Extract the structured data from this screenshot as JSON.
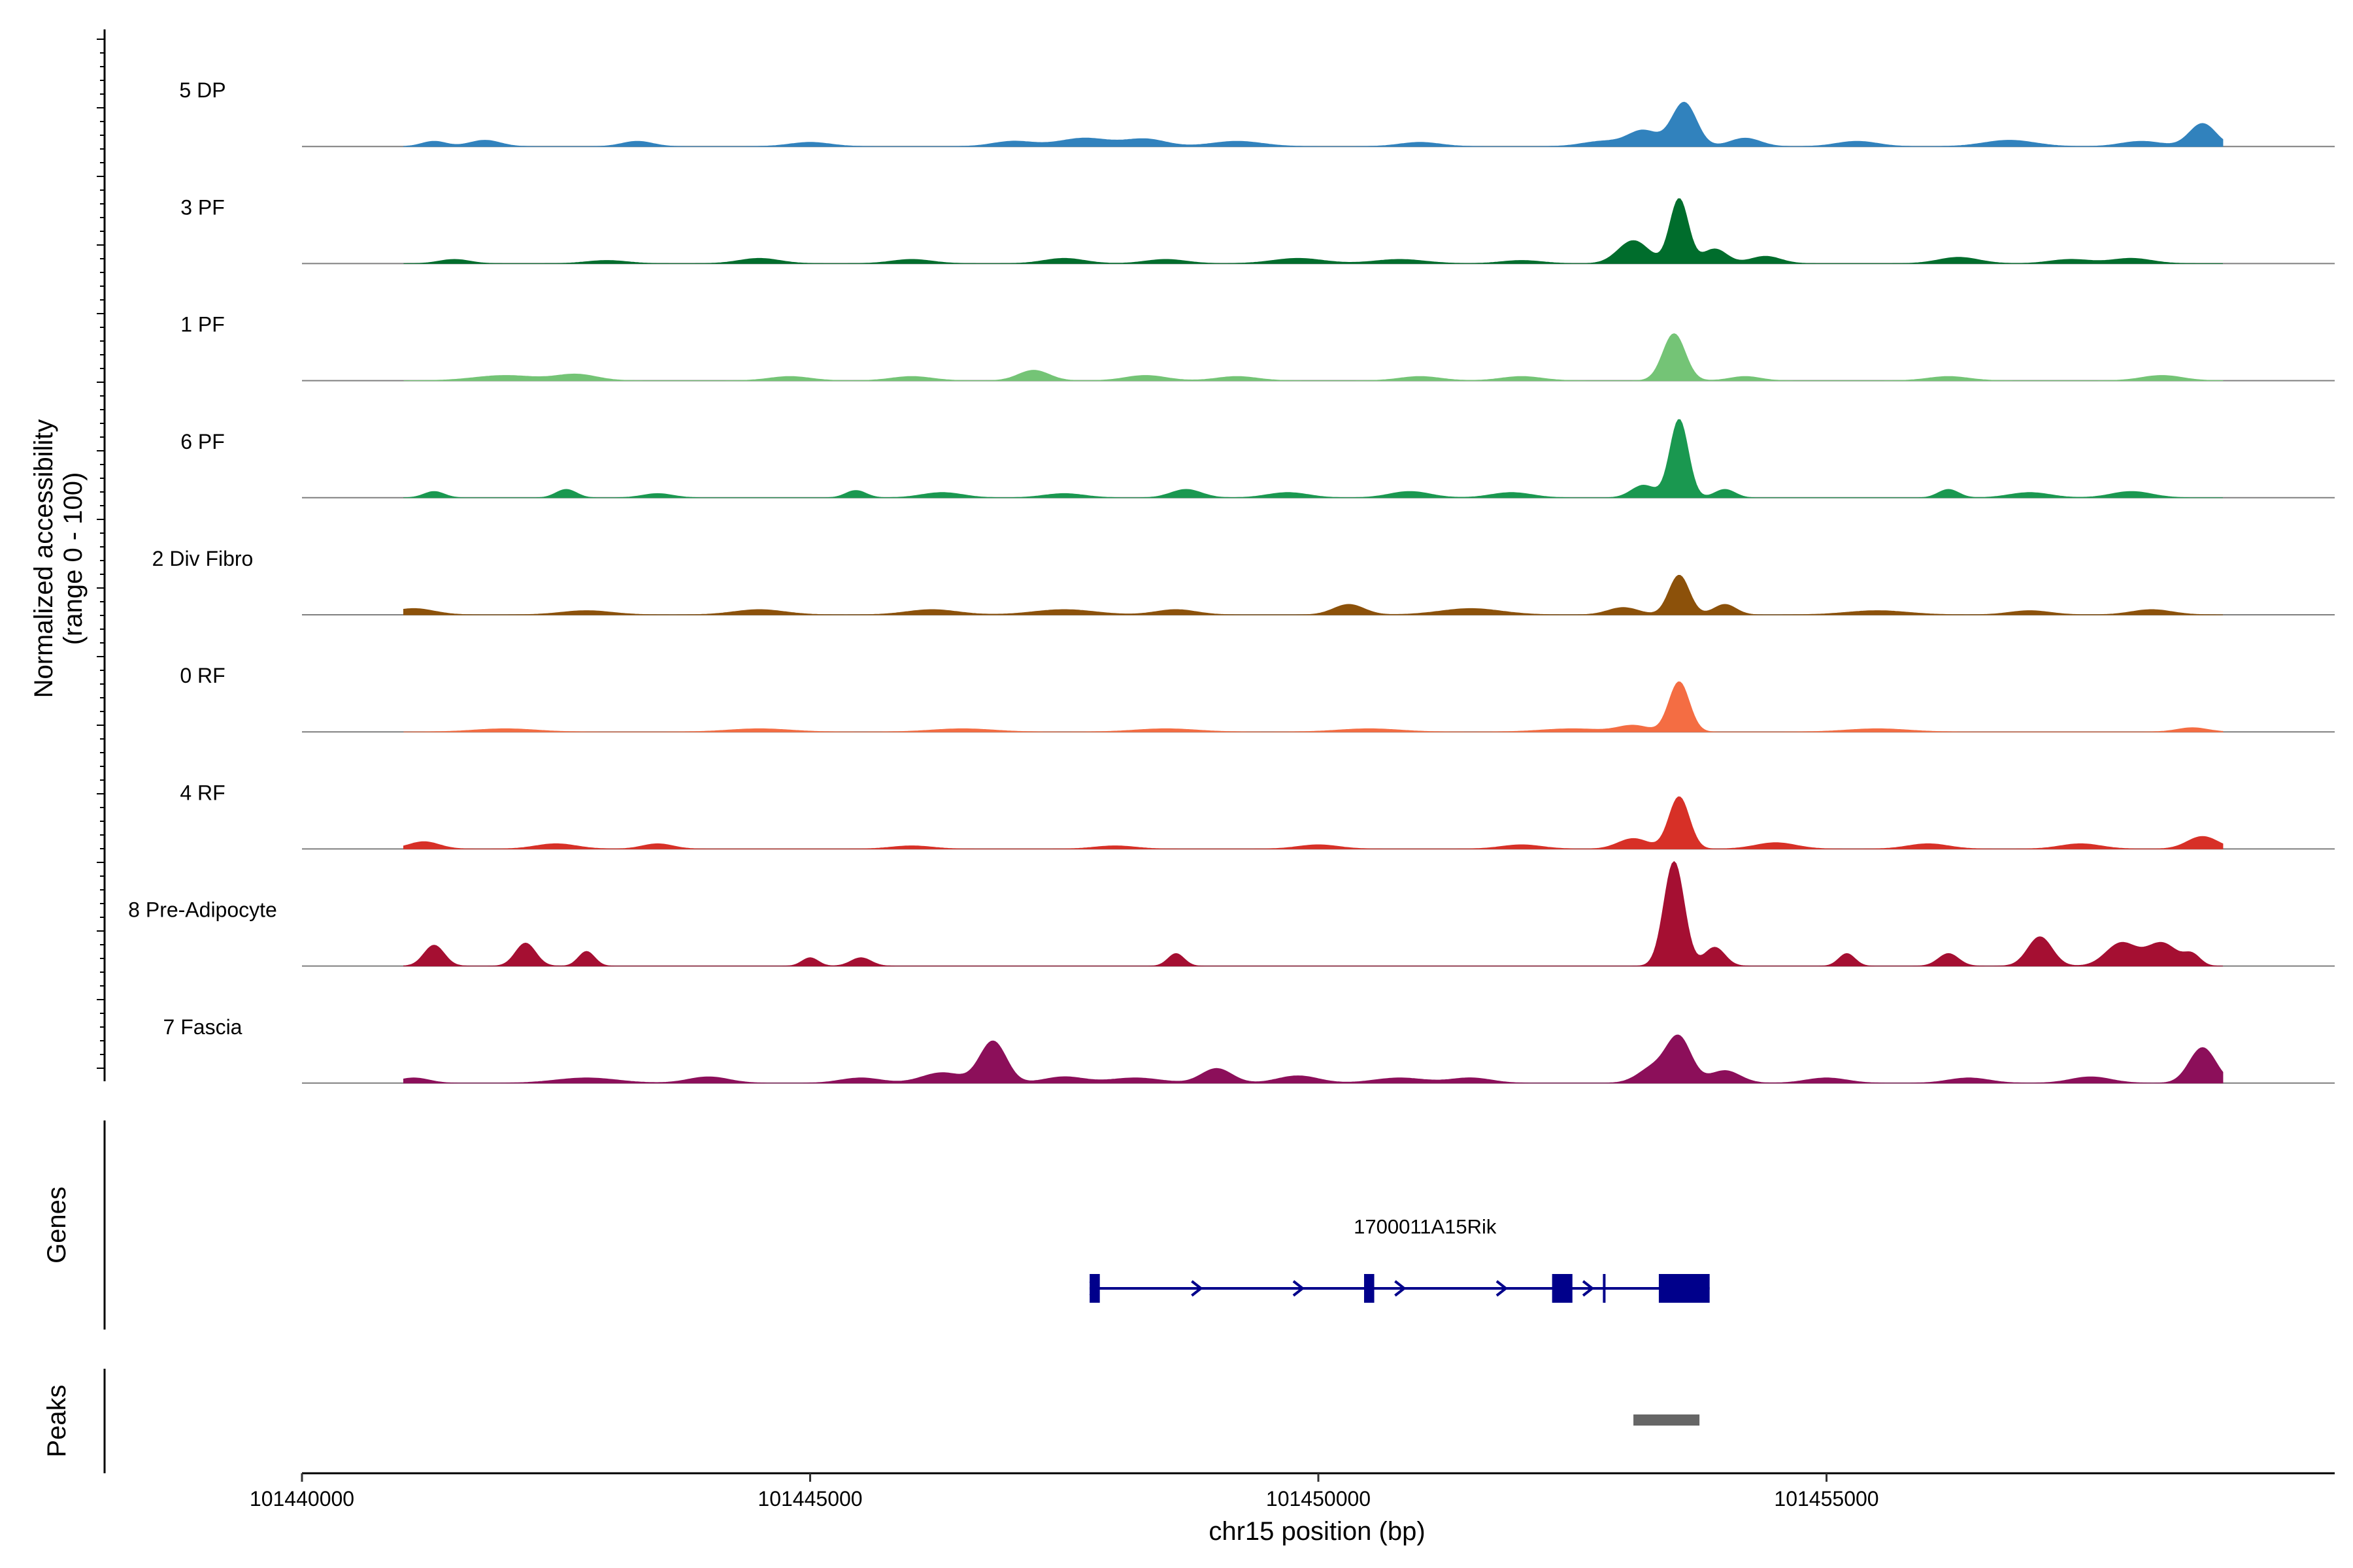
{
  "chart_data": {
    "type": "area",
    "title": "",
    "ylabel_line1": "Normalized accessibility",
    "ylabel_line2": "(range 0 - 100)",
    "xlabel": "chr15 position (bp)",
    "xlim": [
      101440000,
      101460000
    ],
    "x_ticks": [
      101440000,
      101445000,
      101450000,
      101455000
    ],
    "x_tick_labels": [
      "101440000",
      "101445000",
      "101450000",
      "101455000"
    ],
    "ylim": [
      0,
      100
    ],
    "series": [
      {
        "name": "5 DP",
        "color": "#3182bd",
        "bumps": [
          [
            101441300,
            5,
            120
          ],
          [
            101441800,
            6,
            150
          ],
          [
            101443300,
            5,
            150
          ],
          [
            101445000,
            4,
            200
          ],
          [
            101447000,
            5,
            200
          ],
          [
            101447700,
            8,
            250
          ],
          [
            101448300,
            7,
            200
          ],
          [
            101449200,
            5,
            250
          ],
          [
            101451000,
            4,
            200
          ],
          [
            101452800,
            5,
            200
          ],
          [
            101453200,
            15,
            150
          ],
          [
            101453600,
            42,
            120
          ],
          [
            101454200,
            8,
            150
          ],
          [
            101455300,
            5,
            200
          ],
          [
            101456800,
            6,
            250
          ],
          [
            101458100,
            5,
            200
          ],
          [
            101458700,
            22,
            130
          ]
        ]
      },
      {
        "name": "3 PF",
        "color": "#006d2c",
        "bumps": [
          [
            101441500,
            4,
            150
          ],
          [
            101443000,
            3,
            200
          ],
          [
            101444500,
            5,
            200
          ],
          [
            101446000,
            4,
            200
          ],
          [
            101447500,
            5,
            200
          ],
          [
            101448500,
            4,
            200
          ],
          [
            101449800,
            5,
            250
          ],
          [
            101450800,
            4,
            250
          ],
          [
            101452000,
            3,
            200
          ],
          [
            101453100,
            22,
            150
          ],
          [
            101453550,
            62,
            90
          ],
          [
            101453900,
            14,
            120
          ],
          [
            101454400,
            7,
            150
          ],
          [
            101456300,
            6,
            200
          ],
          [
            101457400,
            4,
            200
          ],
          [
            101458000,
            5,
            200
          ]
        ]
      },
      {
        "name": "1 PF",
        "color": "#74c476",
        "bumps": [
          [
            101442000,
            5,
            300
          ],
          [
            101442700,
            6,
            200
          ],
          [
            101444800,
            4,
            200
          ],
          [
            101446000,
            4,
            200
          ],
          [
            101447200,
            10,
            150
          ],
          [
            101448300,
            5,
            200
          ],
          [
            101449200,
            4,
            200
          ],
          [
            101451000,
            4,
            200
          ],
          [
            101452000,
            4,
            200
          ],
          [
            101453500,
            45,
            110
          ],
          [
            101454200,
            4,
            150
          ],
          [
            101456200,
            4,
            200
          ],
          [
            101458300,
            5,
            200
          ]
        ]
      },
      {
        "name": "6 PF",
        "color": "#1a9850",
        "bumps": [
          [
            101441300,
            6,
            100
          ],
          [
            101442600,
            8,
            100
          ],
          [
            101443500,
            4,
            150
          ],
          [
            101445450,
            7,
            100
          ],
          [
            101446300,
            5,
            200
          ],
          [
            101447500,
            4,
            200
          ],
          [
            101448700,
            8,
            150
          ],
          [
            101449700,
            5,
            200
          ],
          [
            101450900,
            6,
            200
          ],
          [
            101451900,
            5,
            200
          ],
          [
            101453200,
            12,
            120
          ],
          [
            101453550,
            75,
            90
          ],
          [
            101454000,
            8,
            100
          ],
          [
            101456200,
            8,
            100
          ],
          [
            101457000,
            5,
            200
          ],
          [
            101458000,
            6,
            200
          ]
        ]
      },
      {
        "name": "2 Div Fibro",
        "color": "#8c510a",
        "bumps": [
          [
            101441100,
            6,
            200
          ],
          [
            101442800,
            4,
            250
          ],
          [
            101444500,
            5,
            250
          ],
          [
            101446200,
            5,
            250
          ],
          [
            101447500,
            5,
            300
          ],
          [
            101448600,
            5,
            200
          ],
          [
            101450300,
            10,
            150
          ],
          [
            101451500,
            6,
            300
          ],
          [
            101453000,
            7,
            150
          ],
          [
            101453550,
            38,
            100
          ],
          [
            101454000,
            10,
            110
          ],
          [
            101455500,
            4,
            300
          ],
          [
            101457000,
            4,
            200
          ],
          [
            101458200,
            5,
            200
          ]
        ]
      },
      {
        "name": "0 RF",
        "color": "#f46d43",
        "bumps": [
          [
            101442000,
            3,
            300
          ],
          [
            101444500,
            3,
            300
          ],
          [
            101446500,
            3,
            300
          ],
          [
            101448500,
            3,
            300
          ],
          [
            101450500,
            3,
            300
          ],
          [
            101452500,
            3,
            300
          ],
          [
            101453550,
            48,
            100
          ],
          [
            101453100,
            6,
            150
          ],
          [
            101455500,
            3,
            300
          ],
          [
            101458600,
            4,
            150
          ]
        ]
      },
      {
        "name": "4 RF",
        "color": "#d73027",
        "bumps": [
          [
            101441200,
            7,
            150
          ],
          [
            101442500,
            5,
            200
          ],
          [
            101443500,
            5,
            150
          ],
          [
            101446000,
            3,
            200
          ],
          [
            101448000,
            3,
            200
          ],
          [
            101450000,
            4,
            200
          ],
          [
            101452000,
            4,
            200
          ],
          [
            101453550,
            50,
            100
          ],
          [
            101453100,
            10,
            150
          ],
          [
            101454500,
            6,
            200
          ],
          [
            101456000,
            5,
            200
          ],
          [
            101457500,
            5,
            200
          ],
          [
            101458700,
            12,
            150
          ]
        ]
      },
      {
        "name": "8 Pre-Adipocyte",
        "color": "#a50f32",
        "bumps": [
          [
            101441300,
            20,
            100
          ],
          [
            101442200,
            22,
            100
          ],
          [
            101442800,
            14,
            80
          ],
          [
            101445000,
            8,
            80
          ],
          [
            101445500,
            8,
            100
          ],
          [
            101448600,
            12,
            80
          ],
          [
            101453500,
            100,
            100
          ],
          [
            101453900,
            18,
            100
          ],
          [
            101455200,
            12,
            80
          ],
          [
            101456200,
            12,
            100
          ],
          [
            101457100,
            28,
            120
          ],
          [
            101457900,
            22,
            150
          ],
          [
            101458300,
            22,
            150
          ],
          [
            101458600,
            10,
            80
          ]
        ]
      },
      {
        "name": "7 Fascia",
        "color": "#8c0f5a",
        "bumps": [
          [
            101441100,
            5,
            150
          ],
          [
            101442800,
            5,
            300
          ],
          [
            101444000,
            6,
            200
          ],
          [
            101445500,
            5,
            200
          ],
          [
            101446300,
            10,
            200
          ],
          [
            101446800,
            40,
            130
          ],
          [
            101447500,
            6,
            200
          ],
          [
            101448200,
            5,
            250
          ],
          [
            101449000,
            14,
            150
          ],
          [
            101449800,
            7,
            200
          ],
          [
            101450800,
            5,
            250
          ],
          [
            101451500,
            5,
            200
          ],
          [
            101453300,
            15,
            150
          ],
          [
            101453550,
            42,
            120
          ],
          [
            101454000,
            12,
            150
          ],
          [
            101455000,
            5,
            200
          ],
          [
            101456400,
            5,
            200
          ],
          [
            101457600,
            6,
            200
          ],
          [
            101458700,
            34,
            130
          ]
        ]
      }
    ],
    "genes_panel_label": "Genes",
    "peaks_panel_label": "Peaks",
    "gene": {
      "name": "1700011A15Rik",
      "color": "#00008b",
      "start": 101447750,
      "end": 101453850,
      "exons": [
        [
          101447750,
          101447850
        ],
        [
          101450450,
          101450550
        ],
        [
          101452300,
          101452500
        ],
        [
          101452800,
          101452820
        ],
        [
          101453350,
          101453850
        ]
      ],
      "arrows": [
        101447800,
        101448800,
        101449800,
        101450800,
        101451800,
        101452650
      ]
    },
    "peaks": [
      {
        "start": 101453100,
        "end": 101453750,
        "color": "#666666"
      }
    ]
  }
}
